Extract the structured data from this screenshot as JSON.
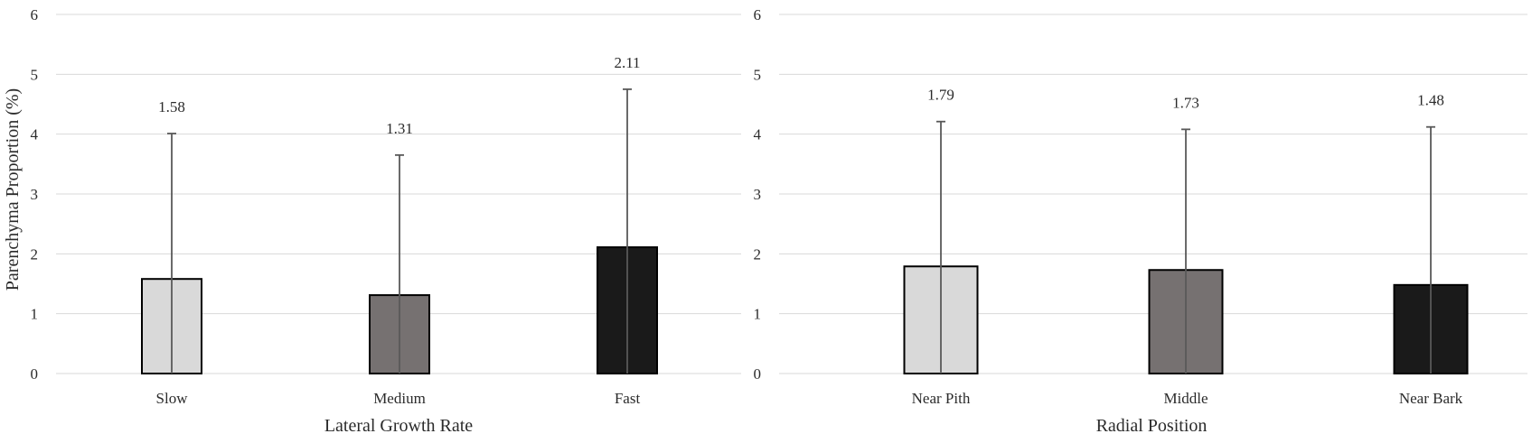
{
  "y_axis_label": "Parenchyma Proportion (%)",
  "chart_data": [
    {
      "type": "bar",
      "xlabel": "Lateral Growth Rate",
      "ylabel": "Parenchyma Proportion (%)",
      "ylim": [
        0,
        6
      ],
      "yticks": [
        "0",
        "1",
        "2",
        "3",
        "4",
        "5",
        "6"
      ],
      "grid": true,
      "categories": [
        "Slow",
        "Medium",
        "Fast"
      ],
      "values": [
        1.58,
        1.31,
        2.11
      ],
      "value_labels": [
        "1.58",
        "1.31",
        "2.11"
      ],
      "error_upper": [
        2.43,
        2.34,
        2.64
      ],
      "bar_colors": [
        "#d9d9d9",
        "#767171",
        "#1a1a1a"
      ]
    },
    {
      "type": "bar",
      "xlabel": "Radial Position",
      "ylabel": "",
      "ylim": [
        0,
        6
      ],
      "yticks": [
        "0",
        "1",
        "2",
        "3",
        "4",
        "5",
        "6"
      ],
      "grid": true,
      "categories": [
        "Near Pith",
        "Middle",
        "Near Bark"
      ],
      "values": [
        1.79,
        1.73,
        1.48
      ],
      "value_labels": [
        "1.79",
        "1.73",
        "1.48"
      ],
      "error_upper": [
        2.42,
        2.35,
        2.64
      ],
      "bar_colors": [
        "#d9d9d9",
        "#767171",
        "#1a1a1a"
      ]
    }
  ]
}
